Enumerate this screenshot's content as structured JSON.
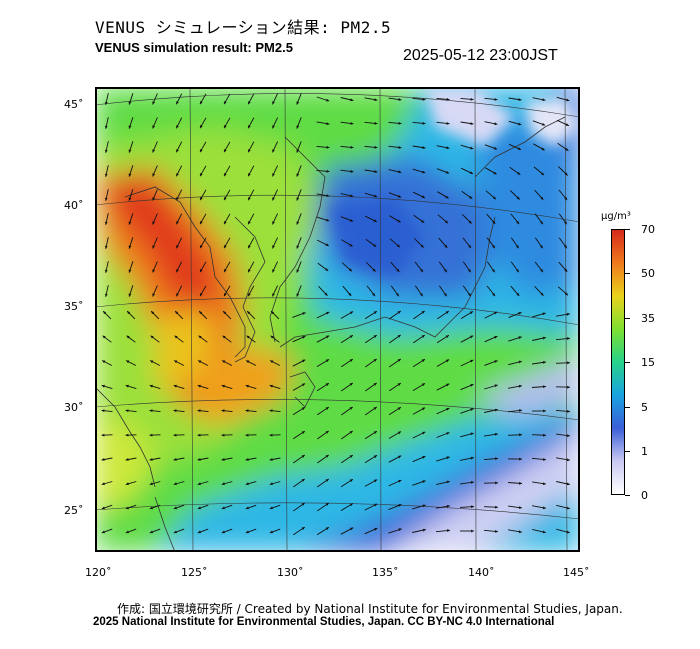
{
  "title": {
    "japanese": "VENUS シミュレーション結果: PM2.5",
    "english": "VENUS simulation result: PM2.5",
    "timestamp": "2025-05-12 23:00JST"
  },
  "map": {
    "lat_labels": [
      "45˚",
      "40˚",
      "35˚",
      "30˚",
      "25˚"
    ],
    "lon_labels": [
      "120˚",
      "125˚",
      "130˚",
      "135˚",
      "140˚",
      "145˚"
    ],
    "field": "PM2.5 concentration with wind vectors"
  },
  "colorbar": {
    "unit": "μg/m³",
    "ticks": [
      "70",
      "50",
      "35",
      "15",
      "5",
      "1",
      "0"
    ],
    "colors": [
      "#d62a1b",
      "#f07a1e",
      "#e9d21c",
      "#7fe030",
      "#27d28a",
      "#1aa3e0",
      "#3a5fd8",
      "#c9c9f2",
      "#ffffff"
    ]
  },
  "credits": {
    "japanese": "作成: 国立環境研究所 / Created by National Institute for Environmental Studies, Japan.",
    "english": "2025 National Institute for Environmental Studies, Japan. CC BY-NC 4.0 International"
  }
}
